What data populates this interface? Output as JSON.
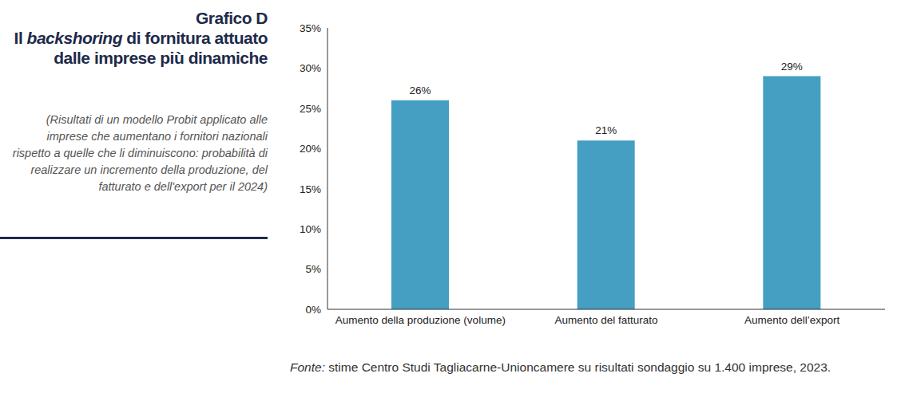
{
  "chart_data": {
    "type": "bar",
    "title": "Grafico D",
    "subtitle": "Il backshoring di fornitura attuato dalle imprese più dinamiche",
    "annotations": [
      "(Risultati di un modello Probit applicato alle imprese che aumentano i fornitori nazionali rispetto a quelle che li diminuiscono: probabilità di realizzare un incremento della produzione, del fatturato e dell'export per il 2024)",
      "Fonte: stime Centro Studi Tagliacarne-Unioncamere su risultati sondaggio su 1.400 imprese, 2023."
    ],
    "categories": [
      "Aumento della produzione (volume)",
      "Aumento del fatturato",
      "Aumento dell’export"
    ],
    "values": [
      26,
      21,
      29
    ],
    "value_labels": [
      "26%",
      "21%",
      "29%"
    ],
    "data_labels": true,
    "color": "#449fc3",
    "ylim": [
      0,
      35
    ],
    "yticks": [
      {
        "value": 0,
        "label": "0%"
      },
      {
        "value": 5,
        "label": "5%"
      },
      {
        "value": 10,
        "label": "10%"
      },
      {
        "value": 15,
        "label": "15%"
      },
      {
        "value": 20,
        "label": "20%"
      },
      {
        "value": 25,
        "label": "25%"
      },
      {
        "value": 30,
        "label": "30%"
      },
      {
        "value": 35,
        "label": "35%"
      }
    ],
    "grid": false
  }
}
